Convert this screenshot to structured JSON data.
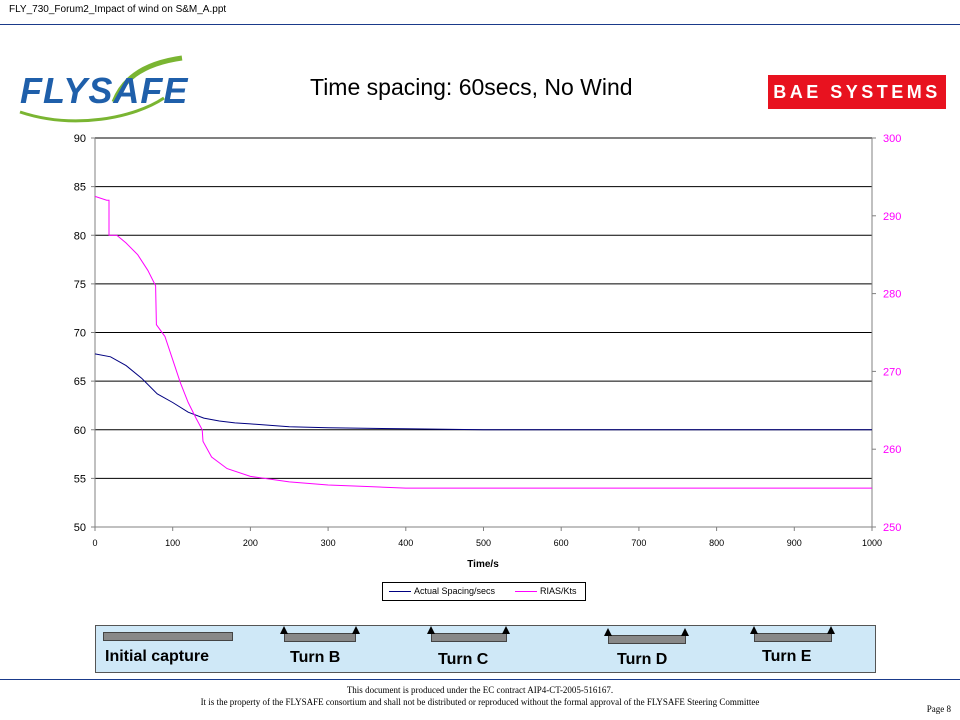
{
  "header": {
    "file_name": "FLY_730_Forum2_Impact of wind on S&M_A.ppt"
  },
  "logos": {
    "flysafe": "FLYSAFE",
    "bae": "BAE SYSTEMS"
  },
  "colors": {
    "actual": "#000080",
    "rias": "#ff00ff",
    "brand_red": "#e8121f",
    "brand_blue": "#1f5faa",
    "brand_green": "#7ab532"
  },
  "chart_data": {
    "type": "line",
    "title": "Time spacing: 60secs, No Wind",
    "xlabel": "Time/s",
    "xlim": [
      0,
      1000
    ],
    "x_ticks": [
      0,
      100,
      200,
      300,
      400,
      500,
      600,
      700,
      800,
      900,
      1000
    ],
    "y_left": {
      "lim": [
        50,
        90
      ],
      "ticks": [
        50,
        55,
        60,
        65,
        70,
        75,
        80,
        85,
        90
      ]
    },
    "y_right": {
      "lim": [
        250,
        300
      ],
      "ticks": [
        250,
        260,
        270,
        280,
        290,
        300
      ]
    },
    "grid": "horizontal",
    "legend_position": "bottom",
    "series": [
      {
        "name": "Actual Spacing/secs",
        "axis": "left",
        "x": [
          0,
          20,
          40,
          60,
          80,
          100,
          120,
          140,
          160,
          180,
          200,
          250,
          300,
          400,
          500,
          700,
          1000
        ],
        "y": [
          67.8,
          67.5,
          66.6,
          65.3,
          63.7,
          62.8,
          61.8,
          61.2,
          60.9,
          60.7,
          60.6,
          60.3,
          60.2,
          60.1,
          60.0,
          60.0,
          60.0
        ]
      },
      {
        "name": "RIAS/Kts",
        "axis": "right",
        "x": [
          0,
          15,
          18,
          18,
          28,
          40,
          55,
          68,
          78,
          79,
          90,
          100,
          110,
          120,
          130,
          138,
          139,
          150,
          170,
          200,
          250,
          300,
          350,
          400,
          500,
          700,
          1000
        ],
        "y": [
          292.5,
          292.0,
          292.0,
          287.5,
          287.5,
          286.5,
          285.0,
          283.0,
          281.0,
          276.0,
          274.5,
          271.5,
          268.5,
          266.0,
          264.0,
          262.5,
          261.0,
          259.0,
          257.5,
          256.5,
          255.8,
          255.4,
          255.2,
          255.0,
          255.0,
          255.0,
          255.0
        ]
      }
    ]
  },
  "turns": [
    {
      "label": "Initial capture"
    },
    {
      "label": "Turn B"
    },
    {
      "label": "Turn C"
    },
    {
      "label": "Turn D"
    },
    {
      "label": "Turn E"
    }
  ],
  "footer": {
    "line1": "This document is produced under the EC contract AIP4-CT-2005-516167.",
    "line2": "It is the property of the FLYSAFE consortium and shall not be distributed or reproduced without the formal approval of the FLYSAFE Steering Committee",
    "page": "Page 8"
  }
}
